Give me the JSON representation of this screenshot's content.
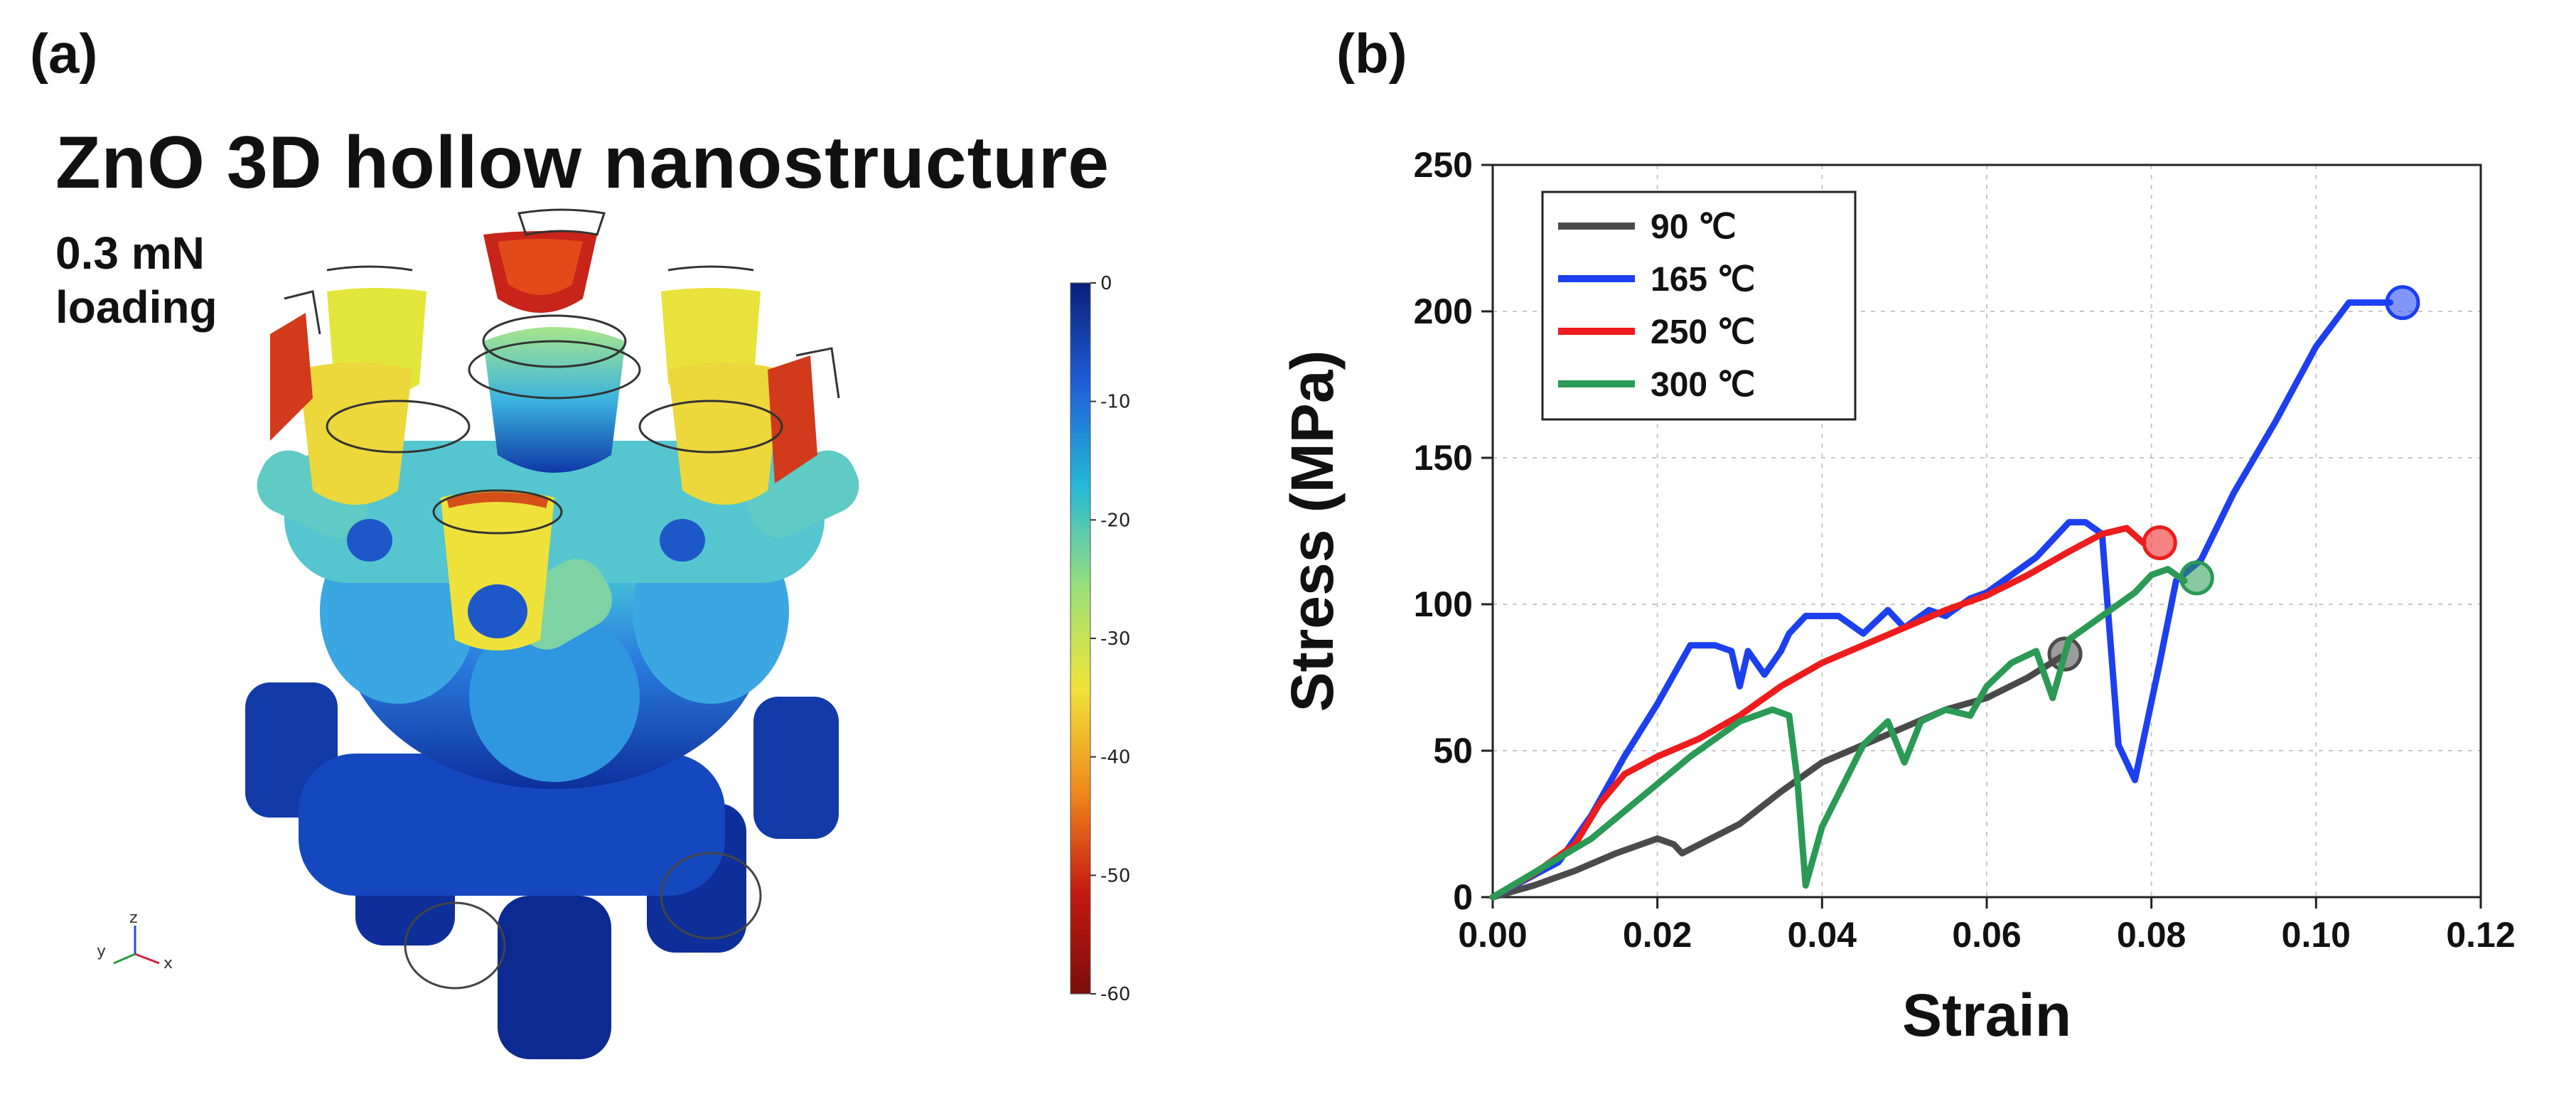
{
  "panel_a": {
    "label": "(a)",
    "title": "ZnO 3D hollow nanostructure",
    "load": "0.3 mN",
    "mode": "loading",
    "colorbar": {
      "ticks": [
        "0",
        "-10",
        "-20",
        "-30",
        "-40",
        "-50",
        "-60"
      ],
      "colors": [
        "#0a1f7a",
        "#1f5fd6",
        "#27b8d8",
        "#9be07a",
        "#f1e23a",
        "#f08a1e",
        "#c41a12",
        "#7a0d0a"
      ]
    },
    "axes_triad": {
      "x": "x",
      "y": "y",
      "z": "z"
    },
    "structure_colors": {
      "top": "#d8e83a",
      "mid": "#3bb5e0",
      "low": "#1e58d0",
      "base": "#0d2f9c",
      "hot": "#c8241a",
      "green": "#9fe08a"
    }
  },
  "panel_b": {
    "label": "(b)"
  },
  "chart_data": {
    "type": "line",
    "xlabel": "Strain",
    "ylabel": "Stress (MPa)",
    "xlim": [
      0,
      0.12
    ],
    "ylim": [
      0,
      250
    ],
    "x_ticks": [
      "0.00",
      "0.02",
      "0.04",
      "0.06",
      "0.08",
      "0.10",
      "0.12"
    ],
    "y_ticks": [
      "0",
      "50",
      "100",
      "150",
      "200",
      "250"
    ],
    "grid": true,
    "legend_position": "top-left",
    "series": [
      {
        "name": "90 ℃",
        "color": "#4a4a4a",
        "x": [
          0.0,
          0.005,
          0.01,
          0.015,
          0.02,
          0.022,
          0.023,
          0.03,
          0.035,
          0.04,
          0.045,
          0.05,
          0.055,
          0.06,
          0.065,
          0.069
        ],
        "y": [
          0,
          4,
          9,
          15,
          20,
          18,
          15,
          25,
          36,
          46,
          52,
          58,
          64,
          68,
          75,
          82
        ],
        "end_marker": {
          "x": 0.0695,
          "y": 83
        }
      },
      {
        "name": "165 ℃",
        "color": "#1c3ff0",
        "x": [
          0.0,
          0.008,
          0.012,
          0.016,
          0.02,
          0.024,
          0.027,
          0.029,
          0.03,
          0.031,
          0.033,
          0.035,
          0.036,
          0.038,
          0.042,
          0.045,
          0.048,
          0.05,
          0.053,
          0.055,
          0.058,
          0.06,
          0.063,
          0.066,
          0.07,
          0.072,
          0.074,
          0.075,
          0.076,
          0.078,
          0.081,
          0.083,
          0.086,
          0.09,
          0.095,
          0.1,
          0.104,
          0.106,
          0.109
        ],
        "y": [
          0,
          12,
          28,
          48,
          66,
          86,
          86,
          84,
          72,
          84,
          76,
          84,
          90,
          96,
          96,
          90,
          98,
          92,
          98,
          96,
          102,
          104,
          110,
          116,
          128,
          128,
          124,
          88,
          52,
          40,
          80,
          108,
          115,
          138,
          162,
          188,
          203,
          203,
          203
        ],
        "end_marker": {
          "x": 0.1105,
          "y": 203
        }
      },
      {
        "name": "250 ℃",
        "color": "#ee1c1c",
        "x": [
          0.0,
          0.005,
          0.01,
          0.013,
          0.016,
          0.02,
          0.025,
          0.03,
          0.035,
          0.04,
          0.045,
          0.05,
          0.055,
          0.06,
          0.065,
          0.07,
          0.074,
          0.077,
          0.079
        ],
        "y": [
          0,
          8,
          18,
          32,
          42,
          48,
          54,
          62,
          72,
          80,
          86,
          92,
          98,
          103,
          110,
          118,
          124,
          126,
          121
        ],
        "end_marker": {
          "x": 0.081,
          "y": 121
        }
      },
      {
        "name": "300 ℃",
        "color": "#2a9a55",
        "x": [
          0.0,
          0.006,
          0.012,
          0.018,
          0.024,
          0.03,
          0.034,
          0.036,
          0.037,
          0.038,
          0.04,
          0.045,
          0.048,
          0.05,
          0.052,
          0.055,
          0.058,
          0.06,
          0.063,
          0.066,
          0.068,
          0.07,
          0.072,
          0.075,
          0.078,
          0.08,
          0.082,
          0.084
        ],
        "y": [
          0,
          10,
          20,
          34,
          48,
          60,
          64,
          62,
          40,
          4,
          24,
          52,
          60,
          46,
          60,
          64,
          62,
          72,
          80,
          84,
          68,
          88,
          92,
          98,
          104,
          110,
          112,
          108
        ],
        "end_marker": {
          "x": 0.0855,
          "y": 109
        }
      }
    ]
  }
}
